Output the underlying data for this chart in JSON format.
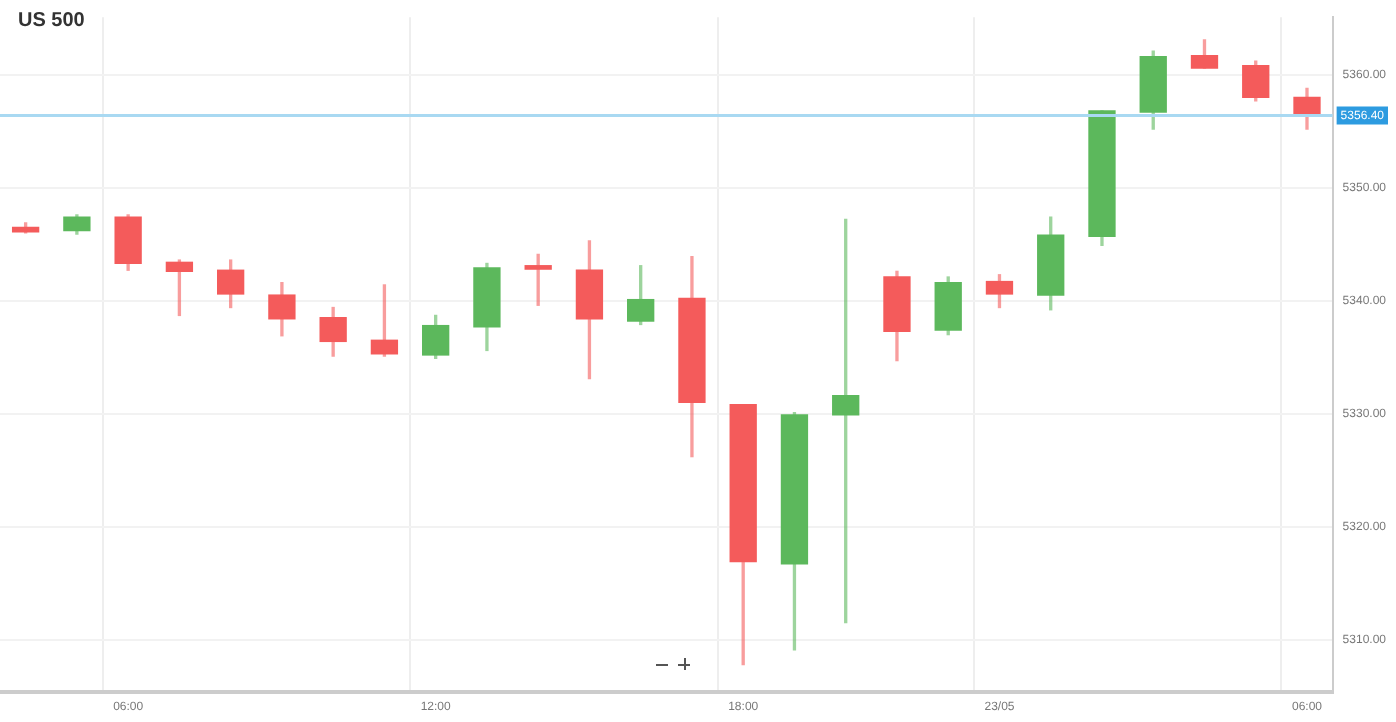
{
  "chart_data": {
    "type": "candlestick",
    "title": "US 500",
    "categories": [
      null,
      null,
      "06:00",
      null,
      null,
      null,
      null,
      null,
      "12:00",
      null,
      null,
      null,
      null,
      null,
      "18:00",
      null,
      null,
      null,
      null,
      "23/05",
      null,
      null,
      null,
      null,
      null,
      "06:00"
    ],
    "ohlc": [
      [
        5346.5,
        5346.9,
        5346.0,
        5346.1
      ],
      [
        5346.2,
        5347.6,
        5345.9,
        5347.4
      ],
      [
        5347.4,
        5347.6,
        5342.7,
        5343.3
      ],
      [
        5343.4,
        5343.6,
        5338.7,
        5342.6
      ],
      [
        5342.7,
        5343.6,
        5339.4,
        5340.6
      ],
      [
        5340.5,
        5341.6,
        5336.9,
        5338.4
      ],
      [
        5338.5,
        5339.4,
        5335.1,
        5336.4
      ],
      [
        5336.5,
        5341.4,
        5335.1,
        5335.3
      ],
      [
        5335.2,
        5338.7,
        5334.9,
        5337.8
      ],
      [
        5337.7,
        5343.3,
        5335.6,
        5342.9
      ],
      [
        5343.1,
        5344.1,
        5339.6,
        5342.8
      ],
      [
        5342.7,
        5345.3,
        5333.1,
        5338.4
      ],
      [
        5338.2,
        5343.1,
        5337.9,
        5340.1
      ],
      [
        5340.2,
        5343.9,
        5326.2,
        5331.0
      ],
      [
        5330.8,
        5330.8,
        5307.8,
        5316.9
      ],
      [
        5316.7,
        5330.1,
        5309.1,
        5329.9
      ],
      [
        5329.9,
        5347.2,
        5311.5,
        5331.6
      ],
      [
        5342.1,
        5342.6,
        5334.7,
        5337.3
      ],
      [
        5337.4,
        5342.1,
        5337.0,
        5341.6
      ],
      [
        5341.7,
        5342.3,
        5339.4,
        5340.6
      ],
      [
        5340.5,
        5347.4,
        5339.2,
        5345.8
      ],
      [
        5345.7,
        5356.8,
        5344.9,
        5356.8
      ],
      [
        5356.7,
        5362.1,
        5355.2,
        5361.6
      ],
      [
        5361.7,
        5363.1,
        5360.6,
        5360.6
      ],
      [
        5360.8,
        5361.2,
        5357.7,
        5358.0
      ],
      [
        5358.0,
        5358.8,
        5355.2,
        5356.4
      ]
    ],
    "colors": [
      "#f45b5b",
      "#5cb85c",
      "#f45b5b",
      "#f45b5b",
      "#f45b5b",
      "#f45b5b",
      "#f45b5b",
      "#f45b5b",
      "#5cb85c",
      "#5cb85c",
      "#f45b5b",
      "#f45b5b",
      "#5cb85c",
      "#f45b5b",
      "#f45b5b",
      "#5cb85c",
      "#5cb85c",
      "#f45b5b",
      "#5cb85c",
      "#f45b5b",
      "#5cb85c",
      "#5cb85c",
      "#5cb85c",
      "#f45b5b",
      "#f45b5b",
      "#f45b5b"
    ],
    "ylim": [
      5305.4,
      5365.1
    ],
    "yticks": [
      {
        "value": 5310,
        "label": "5310.00"
      },
      {
        "value": 5320,
        "label": "5320.00"
      },
      {
        "value": 5330,
        "label": "5330.00"
      },
      {
        "value": 5340,
        "label": "5340.00"
      },
      {
        "value": 5350,
        "label": "5350.00"
      },
      {
        "value": 5360,
        "label": "5360.00"
      }
    ],
    "ref_lines": [
      {
        "axis": "y",
        "value": 5356.4,
        "label": "5356.40",
        "color": "#a9d9f2"
      }
    ],
    "grid": true,
    "legend": false
  }
}
